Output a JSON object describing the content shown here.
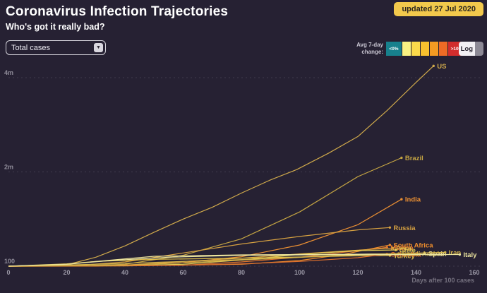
{
  "header": {
    "title": "Coronavirus Infection Trajectories",
    "subtitle": "Who's got it really bad?",
    "updated_badge": "updated 27 Jul 2020"
  },
  "controls": {
    "metric_dropdown": {
      "value": "Total cases",
      "caret": "▼"
    },
    "legend": {
      "label_line1": "Avg 7-day",
      "label_line2": "change:",
      "swatches": [
        {
          "label": "<0%",
          "color": "#17818d",
          "width": 22
        },
        {
          "label": "",
          "color": "#f8f283",
          "width": 12
        },
        {
          "label": "",
          "color": "#fbda4b",
          "width": 12
        },
        {
          "label": "",
          "color": "#f8c02e",
          "width": 12
        },
        {
          "label": "",
          "color": "#f49b22",
          "width": 12
        },
        {
          "label": "",
          "color": "#ee6b25",
          "width": 12
        },
        {
          "label": ">10%",
          "color": "#d22d2d",
          "width": 24
        }
      ]
    },
    "log_toggle": {
      "label": "Log",
      "active": false
    }
  },
  "chart_data": {
    "type": "line",
    "title": "Coronavirus Infection Trajectories",
    "xlabel": "Days after 100 cases",
    "ylabel": "Total cases",
    "scale": "linear",
    "xlim": [
      0,
      160
    ],
    "ylim_millions": [
      0,
      4.5
    ],
    "x_ticks": [
      0,
      20,
      40,
      60,
      80,
      100,
      120,
      140,
      160
    ],
    "y_ticks": [
      {
        "label": "100",
        "value_millions": 0.0001
      },
      {
        "label": "2m",
        "value_millions": 2
      },
      {
        "label": "4m",
        "value_millions": 4
      }
    ],
    "grid": "dashed horizontal",
    "colors_meaning": "line color encodes avg 7-day change (teal <0% to red >10%)",
    "series": [
      {
        "name": "US",
        "color": "#cfa94b",
        "points": [
          [
            0,
            0.0001
          ],
          [
            10,
            0.001
          ],
          [
            20,
            0.03
          ],
          [
            30,
            0.19
          ],
          [
            40,
            0.43
          ],
          [
            50,
            0.72
          ],
          [
            60,
            1.0
          ],
          [
            70,
            1.25
          ],
          [
            80,
            1.55
          ],
          [
            90,
            1.83
          ],
          [
            99,
            2.05
          ],
          [
            110,
            2.4
          ],
          [
            120,
            2.75
          ],
          [
            130,
            3.3
          ],
          [
            140,
            3.9
          ],
          [
            146,
            4.25
          ]
        ]
      },
      {
        "name": "Brazil",
        "color": "#c4a443",
        "points": [
          [
            0,
            0.0001
          ],
          [
            20,
            0.002
          ],
          [
            40,
            0.04
          ],
          [
            60,
            0.23
          ],
          [
            80,
            0.58
          ],
          [
            100,
            1.15
          ],
          [
            120,
            1.9
          ],
          [
            135,
            2.3
          ]
        ]
      },
      {
        "name": "India",
        "color": "#ea8f33",
        "points": [
          [
            0,
            0.0001
          ],
          [
            30,
            0.001
          ],
          [
            60,
            0.075
          ],
          [
            80,
            0.2
          ],
          [
            100,
            0.45
          ],
          [
            120,
            0.88
          ],
          [
            135,
            1.42
          ]
        ]
      },
      {
        "name": "Russia",
        "color": "#d5a041",
        "points": [
          [
            0,
            0.0001
          ],
          [
            20,
            0.002
          ],
          [
            40,
            0.09
          ],
          [
            60,
            0.28
          ],
          [
            80,
            0.47
          ],
          [
            100,
            0.63
          ],
          [
            120,
            0.77
          ],
          [
            131,
            0.82
          ]
        ]
      },
      {
        "name": "South Africa",
        "color": "#ee8d2d",
        "points": [
          [
            0,
            0.0001
          ],
          [
            40,
            0.004
          ],
          [
            80,
            0.04
          ],
          [
            100,
            0.12
          ],
          [
            115,
            0.25
          ],
          [
            131,
            0.45
          ]
        ]
      },
      {
        "name": "Mexico",
        "color": "#e3782e",
        "points": [
          [
            0,
            0.0001
          ],
          [
            60,
            0.02
          ],
          [
            80,
            0.09
          ],
          [
            100,
            0.19
          ],
          [
            120,
            0.33
          ],
          [
            130,
            0.4
          ]
        ]
      },
      {
        "name": "Peru",
        "color": "#daa23e",
        "points": [
          [
            0,
            0.0001
          ],
          [
            40,
            0.02
          ],
          [
            60,
            0.1
          ],
          [
            80,
            0.17
          ],
          [
            100,
            0.26
          ],
          [
            120,
            0.34
          ],
          [
            132,
            0.385
          ]
        ]
      },
      {
        "name": "Chile",
        "color": "#e5cf55",
        "points": [
          [
            0,
            0.0001
          ],
          [
            40,
            0.012
          ],
          [
            60,
            0.04
          ],
          [
            80,
            0.13
          ],
          [
            100,
            0.25
          ],
          [
            120,
            0.33
          ],
          [
            133,
            0.345
          ]
        ]
      },
      {
        "name": "Turkey",
        "color": "#e5c34a",
        "points": [
          [
            0,
            0.0001
          ],
          [
            20,
            0.05
          ],
          [
            30,
            0.1
          ],
          [
            50,
            0.145
          ],
          [
            80,
            0.17
          ],
          [
            100,
            0.195
          ],
          [
            120,
            0.22
          ],
          [
            131,
            0.227
          ]
        ]
      },
      {
        "name": "Colombia",
        "color": "#df6f2c",
        "points": [
          [
            0,
            0.0001
          ],
          [
            60,
            0.02
          ],
          [
            80,
            0.05
          ],
          [
            100,
            0.1
          ],
          [
            120,
            0.18
          ],
          [
            130,
            0.257
          ]
        ]
      },
      {
        "name": "Saudi Arabia",
        "color": "#d2af45",
        "points": [
          [
            0,
            0.0001
          ],
          [
            40,
            0.02
          ],
          [
            60,
            0.07
          ],
          [
            80,
            0.13
          ],
          [
            100,
            0.19
          ],
          [
            120,
            0.25
          ],
          [
            134,
            0.268
          ]
        ]
      },
      {
        "name": "Spain",
        "color": "#eee39a",
        "points": [
          [
            0,
            0.0001
          ],
          [
            20,
            0.04
          ],
          [
            30,
            0.1
          ],
          [
            50,
            0.21
          ],
          [
            80,
            0.24
          ],
          [
            110,
            0.25
          ],
          [
            130,
            0.26
          ],
          [
            143,
            0.272
          ]
        ]
      },
      {
        "name": "Iran",
        "color": "#d4b54b",
        "points": [
          [
            0,
            0.0001
          ],
          [
            30,
            0.04
          ],
          [
            60,
            0.1
          ],
          [
            90,
            0.16
          ],
          [
            120,
            0.24
          ],
          [
            150,
            0.293
          ]
        ]
      },
      {
        "name": "Italy",
        "color": "#ece59f",
        "points": [
          [
            0,
            0.0001
          ],
          [
            20,
            0.04
          ],
          [
            35,
            0.12
          ],
          [
            55,
            0.19
          ],
          [
            80,
            0.23
          ],
          [
            110,
            0.242
          ],
          [
            155,
            0.247
          ]
        ]
      }
    ]
  }
}
